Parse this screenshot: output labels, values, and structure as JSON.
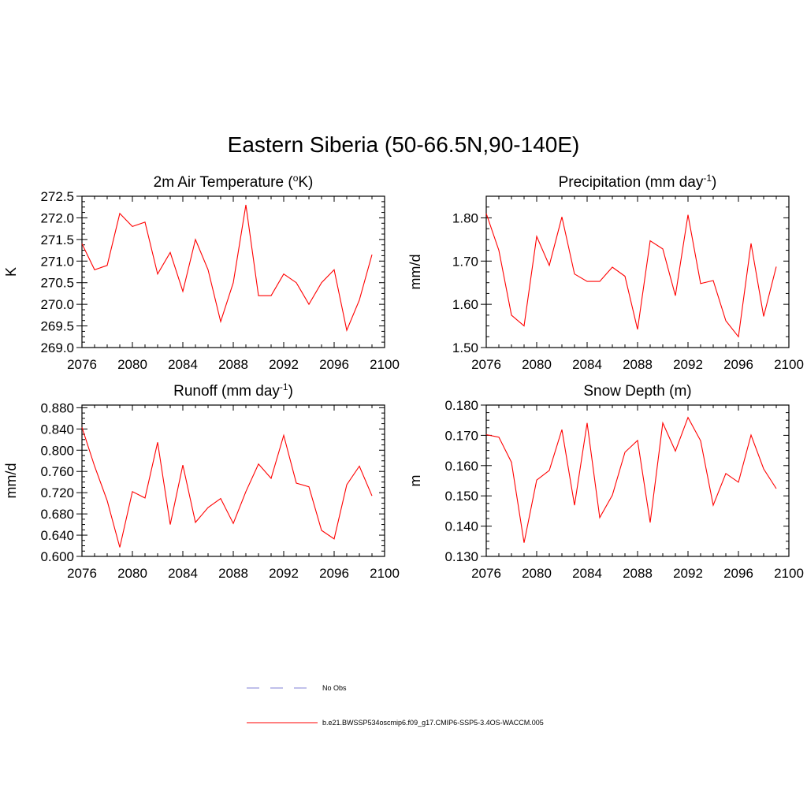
{
  "title": "Eastern Siberia (50-66.5N,90-140E)",
  "colors": {
    "series": "#ff0000",
    "obs": "#9999dd",
    "axis": "#000000"
  },
  "legend": {
    "obs_label": "No Obs",
    "series_label": "b.e21.BWSSP534oscmip6.f09_g17.CMIP6-SSP5-3.4OS-WACCM.005"
  },
  "chart_data": [
    {
      "type": "line",
      "title_main": "2m Air Temperature (",
      "title_sup": "o",
      "title_end": "K)",
      "ylabel": "K",
      "xlim": [
        2076,
        2100
      ],
      "ylim": [
        269.0,
        272.5
      ],
      "xticks": [
        2076,
        2080,
        2084,
        2088,
        2092,
        2096,
        2100
      ],
      "yticks": [
        "269.0",
        "269.5",
        "270.0",
        "270.5",
        "271.0",
        "271.5",
        "272.0",
        "272.5"
      ],
      "x": [
        2076,
        2077,
        2078,
        2079,
        2080,
        2081,
        2082,
        2083,
        2084,
        2085,
        2086,
        2087,
        2088,
        2089,
        2090,
        2091,
        2092,
        2093,
        2094,
        2095,
        2096,
        2097,
        2098,
        2099
      ],
      "y": [
        271.4,
        270.8,
        270.9,
        272.1,
        271.8,
        271.9,
        270.7,
        271.2,
        270.3,
        271.5,
        270.8,
        269.6,
        270.5,
        272.3,
        270.2,
        270.2,
        270.7,
        270.5,
        270.0,
        270.5,
        270.8,
        269.4,
        270.1,
        271.15
      ]
    },
    {
      "type": "line",
      "title_main": "Precipitation (mm day",
      "title_sup": "-1",
      "title_end": ")",
      "ylabel": "mm/d",
      "xlim": [
        2076,
        2100
      ],
      "ylim": [
        1.5,
        1.85
      ],
      "xticks": [
        2076,
        2080,
        2084,
        2088,
        2092,
        2096,
        2100
      ],
      "yticks": [
        "1.50",
        "1.60",
        "1.70",
        "1.80"
      ],
      "x": [
        2076,
        2077,
        2078,
        2079,
        2080,
        2081,
        2082,
        2083,
        2084,
        2085,
        2086,
        2087,
        2088,
        2089,
        2090,
        2091,
        2092,
        2093,
        2094,
        2095,
        2096,
        2097,
        2098,
        2099
      ],
      "y": [
        1.81,
        1.725,
        1.575,
        1.55,
        1.757,
        1.69,
        1.802,
        1.67,
        1.653,
        1.653,
        1.686,
        1.665,
        1.542,
        1.747,
        1.728,
        1.62,
        1.807,
        1.648,
        1.655,
        1.562,
        1.525,
        1.741,
        1.572,
        1.687
      ]
    },
    {
      "type": "line",
      "title_main": "Runoff (mm day",
      "title_sup": "-1",
      "title_end": ")",
      "ylabel": "mm/d",
      "xlim": [
        2076,
        2100
      ],
      "ylim": [
        0.6,
        0.885
      ],
      "xticks": [
        2076,
        2080,
        2084,
        2088,
        2092,
        2096,
        2100
      ],
      "yticks": [
        "0.600",
        "0.640",
        "0.680",
        "0.720",
        "0.760",
        "0.800",
        "0.840",
        "0.880"
      ],
      "x": [
        2076,
        2077,
        2078,
        2079,
        2080,
        2081,
        2082,
        2083,
        2084,
        2085,
        2086,
        2087,
        2088,
        2089,
        2090,
        2091,
        2092,
        2093,
        2094,
        2095,
        2096,
        2097,
        2098,
        2099
      ],
      "y": [
        0.843,
        0.77,
        0.705,
        0.617,
        0.722,
        0.71,
        0.815,
        0.66,
        0.772,
        0.664,
        0.692,
        0.709,
        0.662,
        0.722,
        0.774,
        0.747,
        0.828,
        0.738,
        0.731,
        0.649,
        0.633,
        0.735,
        0.77,
        0.714
      ]
    },
    {
      "type": "line",
      "title_main": "Snow Depth (m)",
      "title_sup": "",
      "title_end": "",
      "ylabel": "m",
      "xlim": [
        2076,
        2100
      ],
      "ylim": [
        0.13,
        0.18
      ],
      "xticks": [
        2076,
        2080,
        2084,
        2088,
        2092,
        2096,
        2100
      ],
      "yticks": [
        "0.130",
        "0.140",
        "0.150",
        "0.160",
        "0.170",
        "0.180"
      ],
      "x": [
        2076,
        2077,
        2078,
        2079,
        2080,
        2081,
        2082,
        2083,
        2084,
        2085,
        2086,
        2087,
        2088,
        2089,
        2090,
        2091,
        2092,
        2093,
        2094,
        2095,
        2096,
        2097,
        2098,
        2099
      ],
      "y": [
        0.1702,
        0.1694,
        0.1611,
        0.1345,
        0.1552,
        0.1584,
        0.1719,
        0.1469,
        0.1741,
        0.1428,
        0.1502,
        0.1644,
        0.1683,
        0.1412,
        0.1741,
        0.1648,
        0.1759,
        0.1682,
        0.1469,
        0.1574,
        0.1545,
        0.1701,
        0.1589,
        0.1524
      ]
    }
  ]
}
